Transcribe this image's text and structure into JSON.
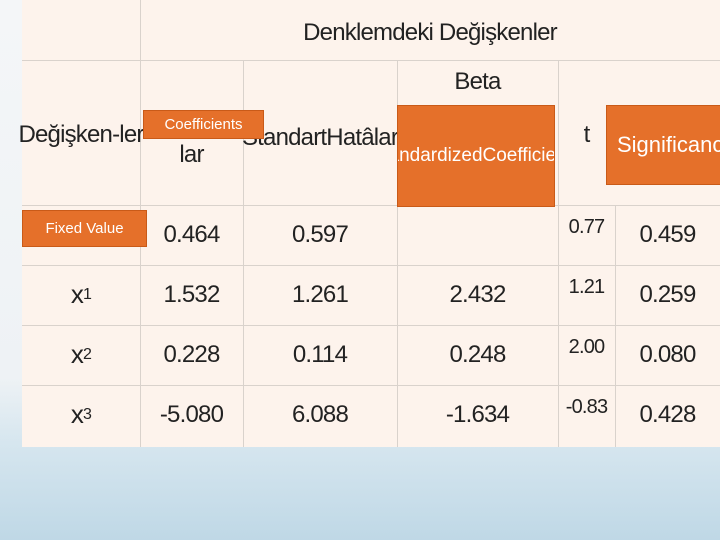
{
  "table": {
    "title": "Denklemdeki Değişkenler",
    "beta": "Beta",
    "headers": {
      "variables": [
        "Değişken-",
        "ler"
      ],
      "coef_tail": "lar",
      "std_errors": [
        "Standart",
        "Hatâlar"
      ],
      "t": "t"
    },
    "overlays": {
      "coefficients": "Coefficients",
      "standardized": [
        "Standardized",
        "Coefficients"
      ],
      "significance": [
        "Significa",
        "nce"
      ],
      "fixed_value": "Fixed Value"
    },
    "rows": [
      {
        "name": null,
        "cells": [
          "0.464",
          "0.597",
          null,
          "0.77",
          "0.459"
        ]
      },
      {
        "name": {
          "base": "x",
          "sub": "1"
        },
        "cells": [
          "1.532",
          "1.261",
          "2.432",
          "1.21",
          "0.259"
        ]
      },
      {
        "name": {
          "base": "x",
          "sub": "2"
        },
        "cells": [
          "0.228",
          "0.114",
          "0.248",
          "2.00",
          "0.080"
        ]
      },
      {
        "name": {
          "base": "x",
          "sub": "3"
        },
        "cells": [
          "-5.080",
          "6.088",
          "-1.634",
          "-0.83",
          "0.428"
        ]
      }
    ]
  }
}
